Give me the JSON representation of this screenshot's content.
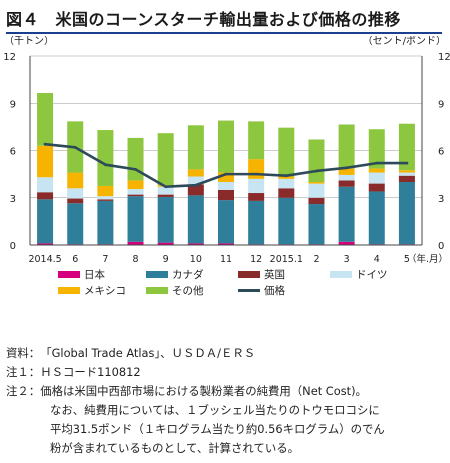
{
  "figure_title": "図４　米国のコーンスターチ輸出量および価格の推移",
  "chart_data": {
    "type": "bar",
    "stacked": true,
    "left_axis_unit": "（千トン）",
    "right_axis_unit": "（セント/ポンド）",
    "ylim": [
      0,
      12
    ],
    "y_ticks": [
      "0",
      "3",
      "6",
      "9",
      "12"
    ],
    "right_ylim": [
      0,
      12
    ],
    "right_ticks": [
      "0",
      "3",
      "6",
      "9",
      "12"
    ],
    "categories": [
      "2014.5",
      "6",
      "7",
      "8",
      "9",
      "10",
      "11",
      "12",
      "2015.1",
      "2",
      "3",
      "4",
      "5"
    ],
    "x_axis_unit": "（年.月）",
    "grid": true,
    "series": [
      {
        "name": "日本",
        "color": "#d6007f",
        "values": [
          0.1,
          0.05,
          0.05,
          0.2,
          0.15,
          0.1,
          0.1,
          0.05,
          0.05,
          0.05,
          0.2,
          0.05,
          0.05
        ]
      },
      {
        "name": "カナダ",
        "color": "#2f7f9a",
        "values": [
          2.8,
          2.6,
          2.75,
          2.9,
          2.9,
          3.05,
          2.75,
          2.75,
          2.95,
          2.55,
          3.5,
          3.35,
          3.95
        ]
      },
      {
        "name": "英国",
        "color": "#8a2b2b",
        "values": [
          0.45,
          0.3,
          0.1,
          0.1,
          0.15,
          0.7,
          0.65,
          0.5,
          0.6,
          0.4,
          0.4,
          0.5,
          0.4
        ]
      },
      {
        "name": "ドイツ",
        "color": "#c6e4f2",
        "values": [
          0.95,
          0.65,
          0.2,
          0.35,
          0.5,
          0.5,
          0.5,
          0.9,
          0.6,
          0.9,
          0.35,
          0.7,
          0.2
        ]
      },
      {
        "name": "メキシコ",
        "color": "#f6b300",
        "values": [
          2.0,
          1.0,
          0.65,
          0.55,
          0.1,
          0.45,
          0.6,
          1.25,
          0.15,
          0.1,
          0.4,
          0.25,
          0.15
        ]
      },
      {
        "name": "その他",
        "color": "#8dc63f",
        "values": [
          3.35,
          3.25,
          3.55,
          2.7,
          3.3,
          2.8,
          3.3,
          2.4,
          3.1,
          2.7,
          2.8,
          2.5,
          2.95
        ]
      }
    ],
    "line_series": {
      "name": "価格",
      "color": "#2d4a5a",
      "values": [
        6.4,
        6.2,
        5.1,
        4.8,
        3.7,
        3.8,
        4.5,
        4.5,
        4.4,
        4.7,
        4.9,
        5.2,
        5.2
      ]
    },
    "legend_position": "bottom"
  },
  "notes": [
    {
      "label": "資料：",
      "text": "「Global Trade Atlas」、ＵＳＤＡ/ＥＲＳ"
    },
    {
      "label": "注１：",
      "text": "ＨＳコード110812"
    },
    {
      "label": "注２：",
      "text": "価格は米国中西部市場における製粉業者の純費用（Net Cost)。"
    },
    {
      "label": "",
      "text": "なお、純費用については、１ブッシェル当たりのトウモロコシに"
    },
    {
      "label": "",
      "text": "平均31.5ポンド（１キログラム当たり約0.56キログラム）のでん"
    },
    {
      "label": "",
      "text": "粉が含まれているものとして、計算されている。"
    }
  ]
}
